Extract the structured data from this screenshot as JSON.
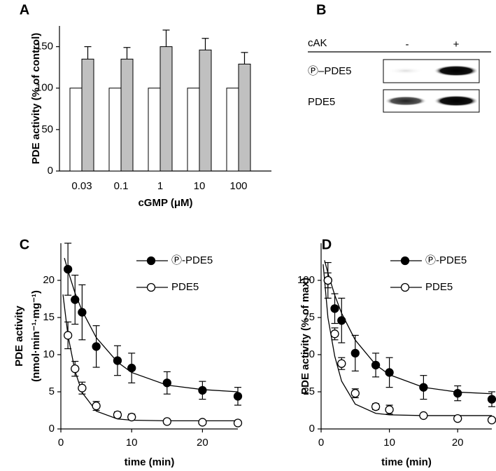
{
  "chart_data": [
    {
      "type": "bar",
      "panel_label": "A",
      "ylabel": [
        "PDE activity (% of control)"
      ],
      "xlabel": "cGMP (μM)",
      "categories": [
        "0.03",
        "0.1",
        "1",
        "10",
        "100"
      ],
      "series": [
        {
          "color": "#ffffff",
          "values": [
            100,
            100,
            100,
            100,
            100
          ]
        },
        {
          "color": "#c0c0c0",
          "values": [
            135,
            135,
            150,
            146,
            129
          ],
          "errors": [
            15,
            14,
            20,
            14,
            14
          ]
        }
      ],
      "ylim": [
        0,
        175
      ],
      "yticks": [
        0,
        50,
        100,
        150
      ]
    },
    {
      "type": "scatter",
      "panel_label": "C",
      "ylabel": [
        "PDE activity",
        "(nmol·min⁻¹·mg⁻¹)"
      ],
      "xlabel": "time (min)",
      "legend": "top-right",
      "series": [
        {
          "name": "Ⓟ-PDE5",
          "color": "#000000",
          "x": [
            1,
            2,
            3,
            5,
            8,
            10,
            15,
            20,
            25
          ],
          "values": [
            21.5,
            17.4,
            15.7,
            11.1,
            9.2,
            8.2,
            6.2,
            5.2,
            4.4
          ],
          "errors": [
            3.5,
            3.3,
            3.7,
            2.8,
            2.0,
            2.0,
            1.5,
            1.2,
            1.2
          ],
          "fit": {
            "x": [
              0.5,
              1,
              2,
              3,
              5,
              8,
              10,
              15,
              20,
              25
            ],
            "y": [
              23.0,
              21.3,
              18.3,
              15.9,
              12.3,
              9.0,
              7.6,
              5.9,
              5.3,
              5.0
            ]
          }
        },
        {
          "name": "PDE5",
          "color": "#ffffff",
          "x": [
            1,
            2,
            3,
            5,
            8,
            10,
            15,
            20,
            25
          ],
          "values": [
            12.6,
            8.1,
            5.5,
            3.1,
            1.9,
            1.6,
            1.0,
            0.9,
            0.8
          ],
          "errors": [
            1.8,
            1.0,
            0.8,
            0.6,
            0.4,
            0.4,
            0.2,
            0.2,
            0.2
          ],
          "fit": {
            "x": [
              0.3,
              1,
              2,
              3,
              5,
              8,
              10,
              15,
              25
            ],
            "y": [
              18.1,
              12.6,
              7.8,
              4.9,
              2.4,
              1.34,
              1.18,
              1.1,
              1.1
            ]
          }
        }
      ],
      "xlim": [
        0,
        25
      ],
      "xticks": [
        0,
        10,
        20
      ],
      "ylim": [
        0,
        25
      ],
      "yticks": [
        0,
        5,
        10,
        15,
        20
      ]
    },
    {
      "type": "scatter",
      "panel_label": "D",
      "ylabel": [
        "PDE activity (% of max)"
      ],
      "xlabel": "time (min)",
      "legend": "top-right",
      "series": [
        {
          "name": "Ⓟ-PDE5",
          "color": "#000000",
          "x": [
            1,
            2,
            3,
            5,
            8,
            10,
            15,
            20,
            25
          ],
          "values": [
            100,
            81,
            73,
            51,
            43,
            38,
            28,
            24,
            20
          ],
          "errors": [
            12,
            10,
            15,
            12,
            8,
            10,
            8,
            5,
            5
          ],
          "fit": {
            "x": [
              0.5,
              1,
              2,
              3,
              5,
              8,
              10,
              15,
              20,
              25
            ],
            "y": [
              113.5,
              104.9,
              90,
              77.9,
              59.8,
              43.2,
              36.5,
              28,
              24.8,
              23.7
            ]
          }
        },
        {
          "name": "PDE5",
          "color": "#ffffff",
          "x": [
            1,
            2,
            3,
            5,
            8,
            10,
            15,
            20,
            25
          ],
          "values": [
            100,
            64,
            44,
            24,
            15,
            13,
            9,
            7,
            6
          ],
          "errors": [
            5,
            4,
            4,
            3,
            2,
            3,
            1,
            1,
            1
          ],
          "fit": {
            "x": [
              0.3,
              1,
              2,
              3,
              5,
              8,
              10,
              15,
              25
            ],
            "y": [
              110.8,
              74.9,
              48.9,
              32.2,
              16.7,
              10.5,
              9.5,
              9,
              9
            ]
          }
        }
      ],
      "xlim": [
        0,
        25
      ],
      "xticks": [
        0,
        10,
        20
      ],
      "ylim": [
        0,
        125
      ],
      "yticks": [
        0,
        25,
        50,
        75,
        100
      ]
    }
  ],
  "blot": {
    "panel_label": "B",
    "treatment": "cAK",
    "lanes": [
      "-",
      "+"
    ],
    "rows": [
      "Ⓟ–PDE5",
      "PDE5"
    ]
  }
}
